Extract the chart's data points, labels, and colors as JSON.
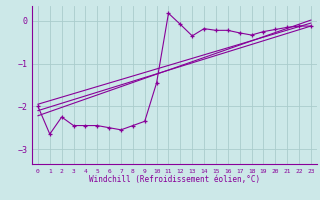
{
  "bg_color": "#cce8e8",
  "grid_color": "#aacccc",
  "line_color": "#880099",
  "x_label": "Windchill (Refroidissement éolien,°C)",
  "ylim": [
    -3.35,
    0.35
  ],
  "xlim": [
    -0.5,
    23.5
  ],
  "yticks": [
    0,
    -1,
    -2,
    -3
  ],
  "xticks": [
    0,
    1,
    2,
    3,
    4,
    5,
    6,
    7,
    8,
    9,
    10,
    11,
    12,
    13,
    14,
    15,
    16,
    17,
    18,
    19,
    20,
    21,
    22,
    23
  ],
  "main_line_x": [
    0,
    1,
    2,
    3,
    4,
    5,
    6,
    7,
    8,
    9,
    10,
    11,
    12,
    13,
    14,
    15,
    16,
    17,
    18,
    19,
    20,
    21,
    22,
    23
  ],
  "main_line_y": [
    -2.0,
    -2.65,
    -2.25,
    -2.45,
    -2.45,
    -2.45,
    -2.5,
    -2.55,
    -2.45,
    -2.35,
    -1.45,
    0.18,
    -0.08,
    -0.35,
    -0.18,
    -0.22,
    -0.22,
    -0.28,
    -0.33,
    -0.25,
    -0.2,
    -0.15,
    -0.12,
    -0.12
  ],
  "line1_x": [
    0,
    23
  ],
  "line1_y": [
    -2.1,
    -0.12
  ],
  "line2_x": [
    0,
    23
  ],
  "line2_y": [
    -1.95,
    -0.05
  ],
  "line3_x": [
    0,
    23
  ],
  "line3_y": [
    -2.22,
    0.02
  ]
}
